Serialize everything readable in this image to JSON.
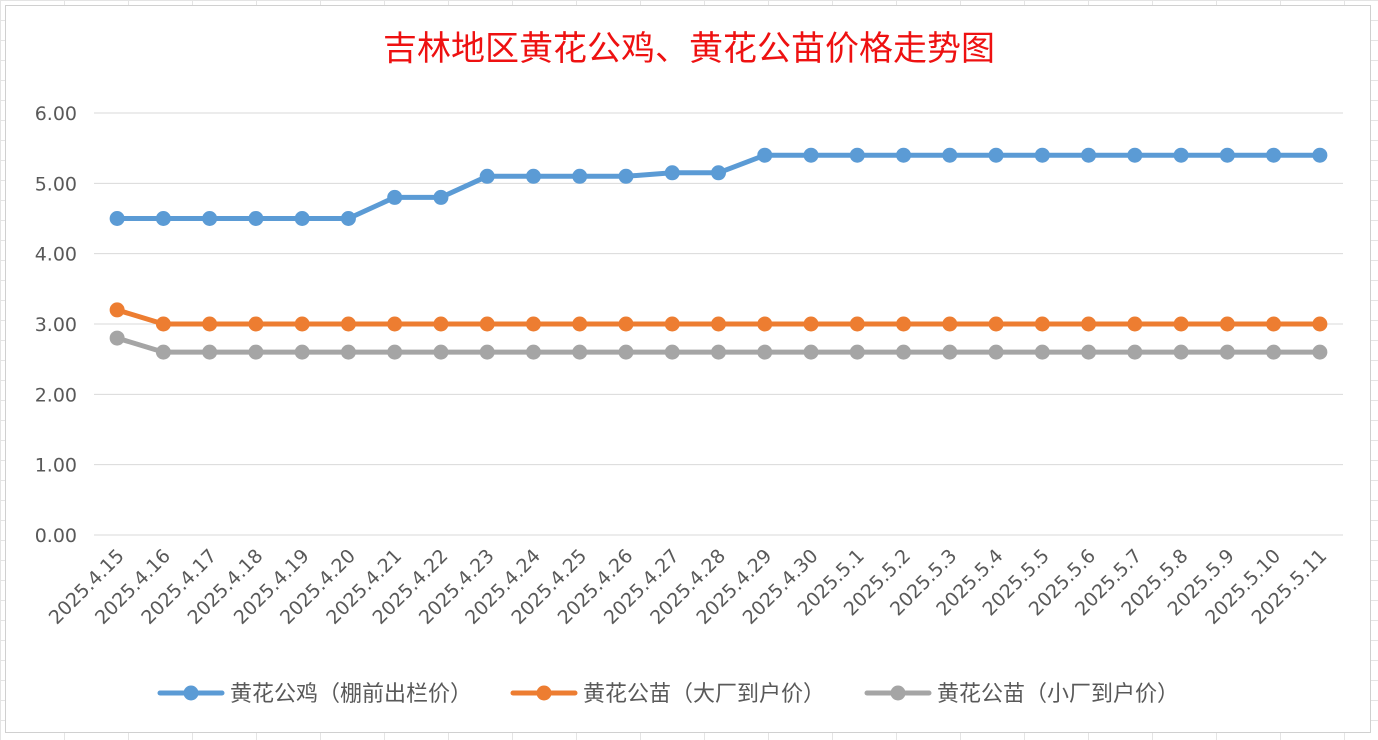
{
  "chart_data": {
    "type": "line",
    "title": "吉林地区黄花公鸡、黄花公苗价格走势图",
    "xlabel": "",
    "ylabel": "",
    "ylim": [
      0,
      6
    ],
    "y_ticks": [
      "0.00",
      "1.00",
      "2.00",
      "3.00",
      "4.00",
      "5.00",
      "6.00"
    ],
    "grid": true,
    "legend_position": "bottom",
    "categories": [
      "2025.4.15",
      "2025.4.16",
      "2025.4.17",
      "2025.4.18",
      "2025.4.19",
      "2025.4.20",
      "2025.4.21",
      "2025.4.22",
      "2025.4.23",
      "2025.4.24",
      "2025.4.25",
      "2025.4.26",
      "2025.4.27",
      "2025.4.28",
      "2025.4.29",
      "2025.4.30",
      "2025.5.1",
      "2025.5.2",
      "2025.5.3",
      "2025.5.4",
      "2025.5.5",
      "2025.5.6",
      "2025.5.7",
      "2025.5.8",
      "2025.5.9",
      "2025.5.10",
      "2025.5.11"
    ],
    "series": [
      {
        "name": "黄花公鸡（棚前出栏价）",
        "color": "#5b9bd5",
        "values": [
          4.5,
          4.5,
          4.5,
          4.5,
          4.5,
          4.5,
          4.8,
          4.8,
          5.1,
          5.1,
          5.1,
          5.1,
          5.15,
          5.15,
          5.4,
          5.4,
          5.4,
          5.4,
          5.4,
          5.4,
          5.4,
          5.4,
          5.4,
          5.4,
          5.4,
          5.4,
          5.4
        ]
      },
      {
        "name": "黄花公苗（大厂到户价）",
        "color": "#ed7d31",
        "values": [
          3.2,
          3.0,
          3.0,
          3.0,
          3.0,
          3.0,
          3.0,
          3.0,
          3.0,
          3.0,
          3.0,
          3.0,
          3.0,
          3.0,
          3.0,
          3.0,
          3.0,
          3.0,
          3.0,
          3.0,
          3.0,
          3.0,
          3.0,
          3.0,
          3.0,
          3.0,
          3.0
        ]
      },
      {
        "name": "黄花公苗（小厂到户价）",
        "color": "#a5a5a5",
        "values": [
          2.8,
          2.6,
          2.6,
          2.6,
          2.6,
          2.6,
          2.6,
          2.6,
          2.6,
          2.6,
          2.6,
          2.6,
          2.6,
          2.6,
          2.6,
          2.6,
          2.6,
          2.6,
          2.6,
          2.6,
          2.6,
          2.6,
          2.6,
          2.6,
          2.6,
          2.6,
          2.6
        ]
      }
    ]
  }
}
